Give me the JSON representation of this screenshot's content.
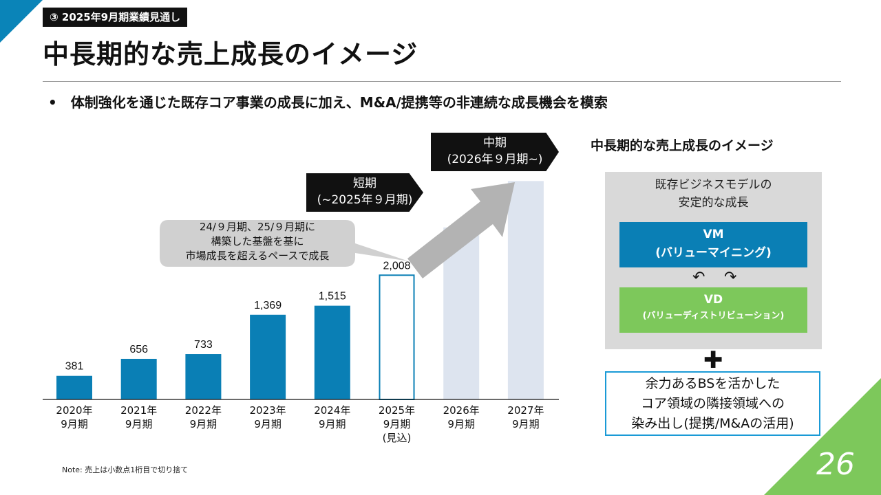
{
  "header": {
    "section_tag": "③ 2025年9月期業績見通し",
    "title": "中長期的な売上成長のイメージ"
  },
  "bullet": "体制強化を通じた既存コア事業の成長に加え、M&A/提携等の非連続な成長機会を模索",
  "colors": {
    "accent_blue": "#0a84b8",
    "accent_green": "#7dc85b",
    "bar_actual": "#0a7fb5",
    "bar_forecast_outline": "#0a7fb5",
    "bar_future": "#dde4ef",
    "arrow": "#b3b3b3",
    "callout_gray": "#d0d0d0"
  },
  "chart_data": {
    "type": "bar",
    "categories": [
      [
        "2020年",
        "9月期"
      ],
      [
        "2021年",
        "9月期"
      ],
      [
        "2022年",
        "9月期"
      ],
      [
        "2023年",
        "9月期"
      ],
      [
        "2024年",
        "9月期"
      ],
      [
        "2025年",
        "9月期",
        "(見込)"
      ],
      [
        "2026年",
        "9月期"
      ],
      [
        "2027年",
        "9月期"
      ]
    ],
    "values": [
      381,
      656,
      733,
      1369,
      1515,
      2008,
      null,
      null
    ],
    "value_labels": [
      "381",
      "656",
      "733",
      "1,369",
      "1,515",
      "2,008",
      "",
      ""
    ],
    "bar_styles": [
      "actual",
      "actual",
      "actual",
      "actual",
      "actual",
      "forecast",
      "future",
      "future"
    ],
    "future_bar_levels": [
      2780,
      3530
    ],
    "ylim": [
      0,
      3700
    ],
    "title": "",
    "xlabel": "",
    "ylabel": ""
  },
  "callouts": {
    "short_term": [
      "短期",
      "(~2025年９月期)"
    ],
    "mid_term": [
      "中期",
      "(2026年９月期~)"
    ],
    "foundation": [
      "24/９月期、25/９月期に",
      "構築した基盤を基に",
      "市場成長を超えるペースで成長"
    ]
  },
  "note": "Note: 売上は小数点1桁目で切り捨て",
  "page_number": "26",
  "right_panel": {
    "title": "中長期的な売上成長のイメージ",
    "existing_model": [
      "既存ビジネスモデルの",
      "安定的な成長"
    ],
    "vm": {
      "title": "VM",
      "subtitle": "(バリューマイニング)"
    },
    "vd": {
      "title": "VD",
      "subtitle": "(バリューディストリビューション)"
    },
    "cycle_icons": [
      "rotate-left-icon",
      "rotate-right-icon"
    ],
    "plus": "✚",
    "bs_box": [
      "余力あるBSを活かした",
      "コア領域の隣接領域への",
      "染み出し(提携/M&Aの活用)"
    ]
  }
}
